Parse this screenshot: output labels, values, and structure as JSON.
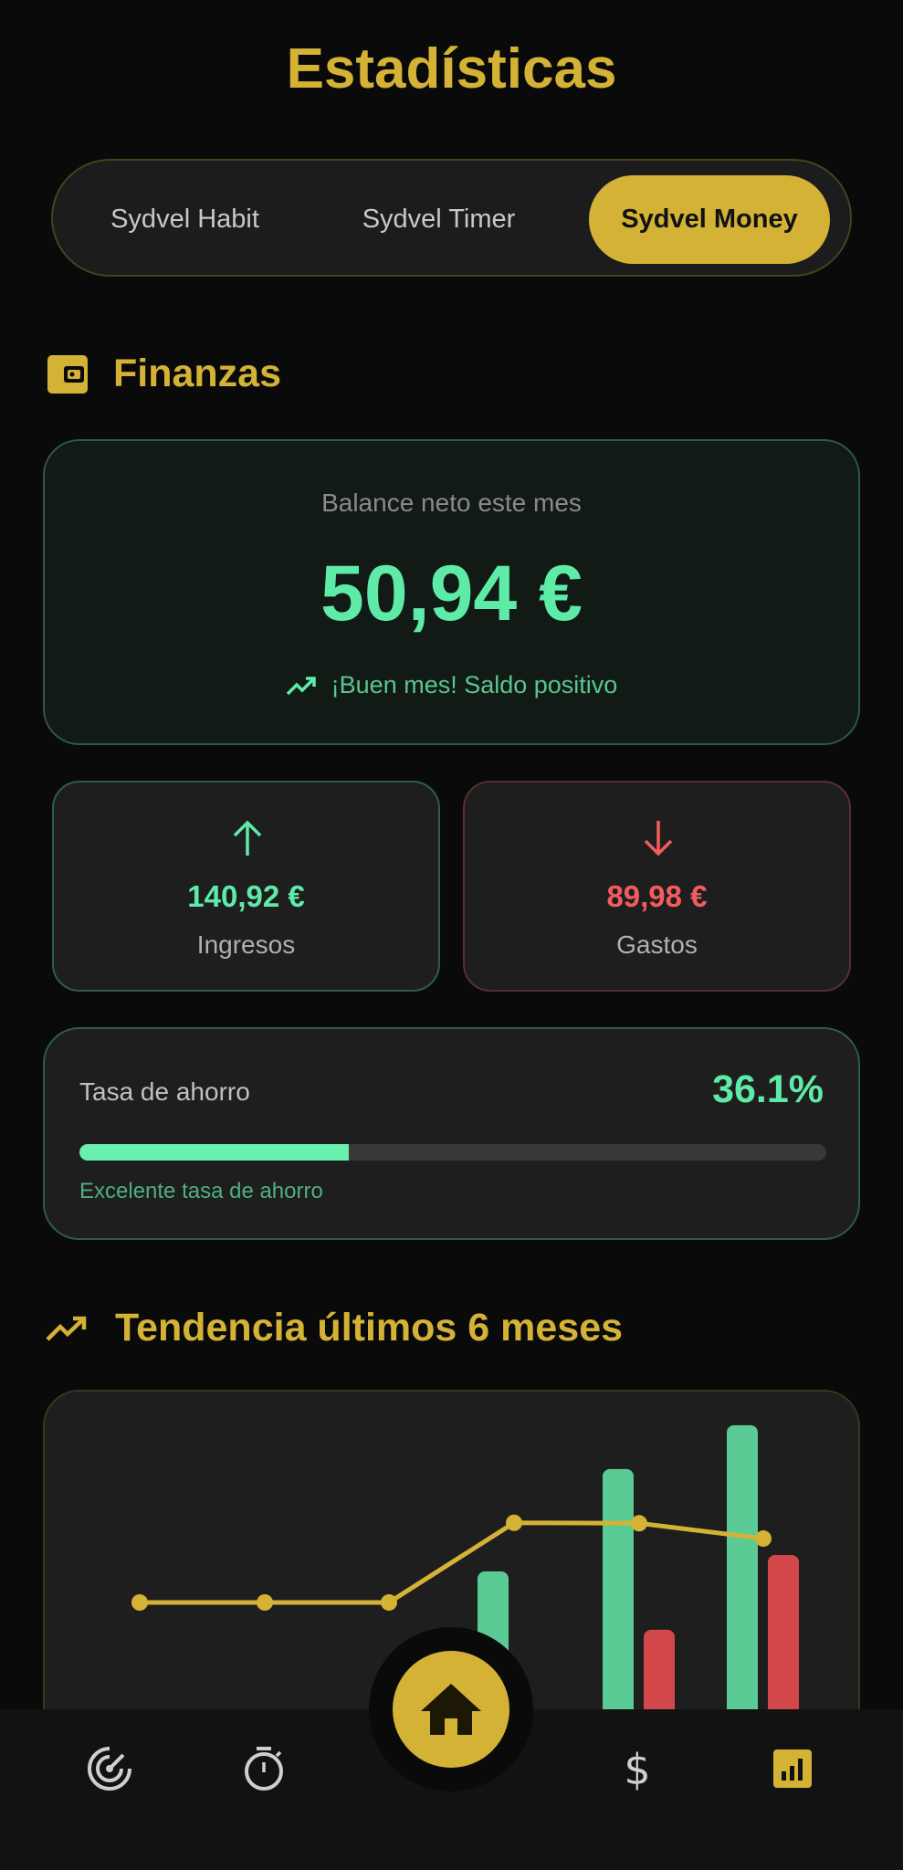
{
  "header": {
    "title": "Estadísticas"
  },
  "tabs": [
    {
      "label": "Sydvel Habit",
      "active": false
    },
    {
      "label": "Sydvel Timer",
      "active": false
    },
    {
      "label": "Sydvel Money",
      "active": true
    }
  ],
  "finance": {
    "section_title": "Finanzas",
    "section_icon": "wallet-icon",
    "balance": {
      "label": "Balance neto este mes",
      "amount": "50,94 €",
      "status": "¡Buen mes! Saldo positivo",
      "status_icon": "trending-up-icon"
    },
    "income": {
      "amount": "140,92 €",
      "label": "Ingresos",
      "icon": "arrow-up-icon"
    },
    "expenses": {
      "amount": "89,98 €",
      "label": "Gastos",
      "icon": "arrow-down-icon"
    },
    "savings": {
      "label": "Tasa de ahorro",
      "percent_text": "36.1%",
      "percent": 36.1,
      "caption": "Excelente tasa de ahorro"
    }
  },
  "trend": {
    "section_title": "Tendencia últimos 6 meses",
    "section_icon": "trending-up-icon"
  },
  "chart_data": {
    "type": "bar",
    "title": "",
    "categories": [
      "",
      "",
      "",
      "",
      "",
      ""
    ],
    "series": [
      {
        "kind": "bar",
        "values": [
          0,
          0,
          0,
          83.5,
          123.7,
          140.92
        ]
      },
      {
        "kind": "bar",
        "values": [
          0,
          0,
          0,
          20,
          60.6,
          89.98
        ]
      },
      {
        "kind": "line",
        "values": [
          0,
          0,
          0,
          63.5,
          63.1,
          50.94
        ]
      }
    ],
    "colors": {
      "income": "#5ACB94",
      "expenses": "#D2484A",
      "balance": "#D4B236"
    },
    "grid": false
  },
  "nav": {
    "items": [
      "radar-icon",
      "timer-icon",
      "home-icon",
      "dollar-icon",
      "bar-chart-icon"
    ],
    "active": "bar-chart-icon"
  },
  "colors": {
    "accent": "#D4B236",
    "positive": "#5EEBA8",
    "negative": "#F25C5C"
  }
}
